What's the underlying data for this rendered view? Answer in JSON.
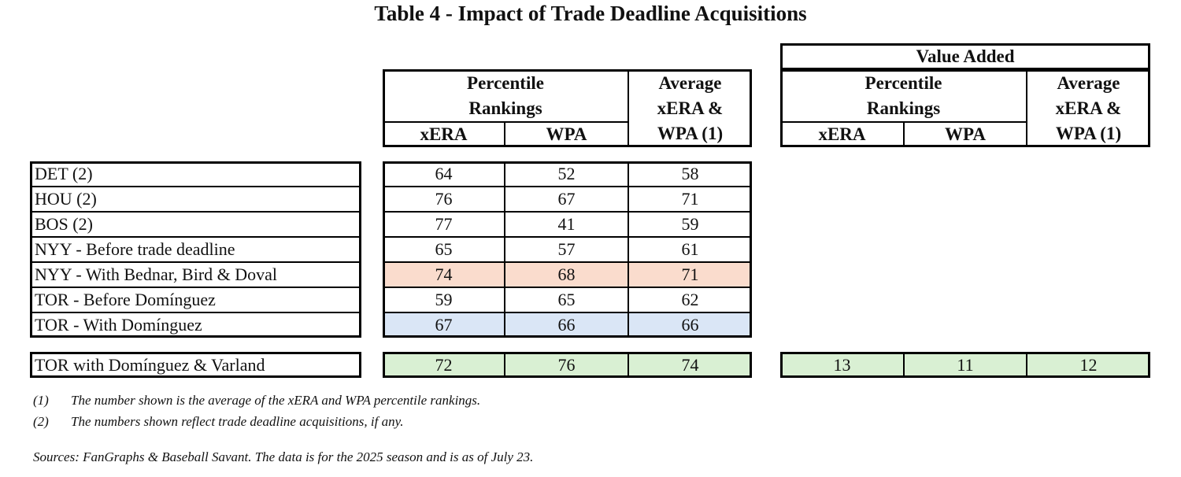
{
  "title": "Table 4 - Impact of Trade Deadline Acquisitions",
  "table": {
    "header": {
      "percentile": [
        "Percentile",
        "Rankings"
      ],
      "columns": [
        "xERA",
        "WPA"
      ],
      "average": [
        "Average",
        "xERA &",
        "WPA (1)"
      ]
    },
    "rows": [
      [
        "DET (2)",
        64,
        52,
        58
      ],
      [
        "HOU (2)",
        76,
        67,
        71
      ],
      [
        "BOS (2)",
        77,
        41,
        59
      ],
      [
        "NYY - Before trade deadline",
        65,
        57,
        61
      ],
      [
        "NYY - With Bednar, Bird & Doval",
        74,
        68,
        71
      ],
      [
        "TOR - Before Domínguez",
        59,
        65,
        62
      ],
      [
        "TOR - With Domínguez",
        67,
        66,
        66
      ]
    ],
    "total_row": [
      "TOR with Domínguez & Varland",
      72,
      76,
      74
    ]
  },
  "value_added": {
    "title": "Value Added",
    "header": {
      "percentile": [
        "Percentile",
        "Rankings"
      ],
      "columns": [
        "xERA",
        "WPA"
      ],
      "average": [
        "Average",
        "xERA &",
        "WPA (1)"
      ]
    },
    "row": [
      13,
      11,
      12
    ]
  },
  "notes": [
    {
      "marker": "(1)",
      "text": "The number shown is the average of the xERA and WPA percentile rankings."
    },
    {
      "marker": "(2)",
      "text": "The numbers shown reflect trade deadline acquisitions, if any."
    }
  ],
  "sources": "Sources: FanGraphs & Baseball Savant. The data is for the 2025 season and is as of July 23."
}
